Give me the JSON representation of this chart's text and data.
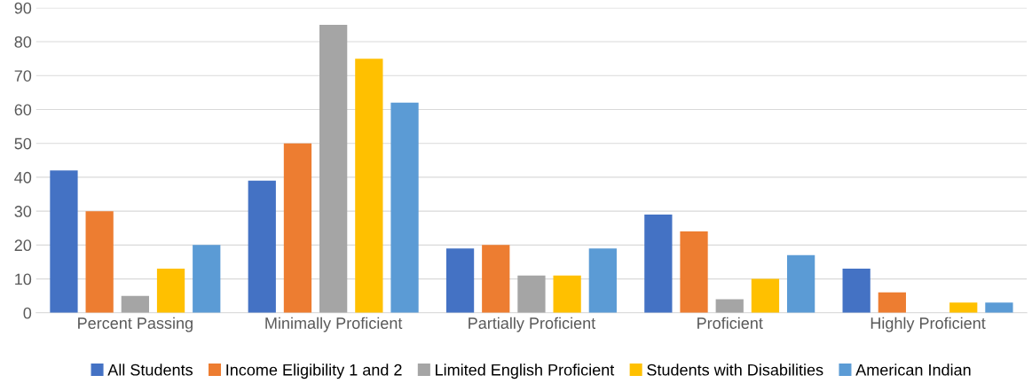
{
  "chart_data": {
    "type": "bar",
    "categories": [
      "Percent Passing",
      "Minimally Proficient",
      "Partially Proficient",
      "Proficient",
      "Highly Proficient"
    ],
    "series": [
      {
        "name": "All Students",
        "color": "#4472c4",
        "values": [
          42,
          39,
          19,
          29,
          13
        ]
      },
      {
        "name": "Income Eligibility 1 and 2",
        "color": "#ed7d31",
        "values": [
          30,
          50,
          20,
          24,
          6
        ]
      },
      {
        "name": "Limited English Proficient",
        "color": "#a5a5a5",
        "values": [
          5,
          85,
          11,
          4,
          null
        ]
      },
      {
        "name": "Students with Disabilities",
        "color": "#ffc000",
        "values": [
          13,
          75,
          11,
          10,
          3
        ]
      },
      {
        "name": "American Indian",
        "color": "#5b9bd5",
        "values": [
          20,
          62,
          19,
          17,
          3
        ]
      }
    ],
    "ylim": [
      0,
      90
    ],
    "yticks": [
      0,
      10,
      20,
      30,
      40,
      50,
      60,
      70,
      80,
      90
    ],
    "grid": "y",
    "legend": "bottom"
  }
}
